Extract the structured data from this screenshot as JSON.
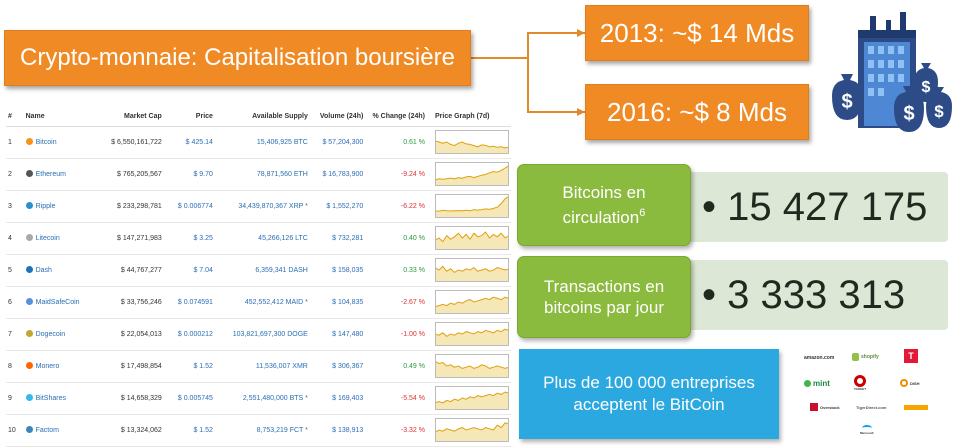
{
  "title": "Crypto-monnaie: Capitalisation boursière",
  "cap_2013": "2013: ~$ 14 Mds",
  "cap_2016": "2016: ~$ 8 Mds",
  "table": {
    "headers": [
      "#",
      "Name",
      "Market Cap",
      "Price",
      "Available Supply",
      "Volume (24h)",
      "% Change (24h)",
      "Price Graph (7d)"
    ],
    "rows": [
      {
        "rank": "1",
        "name": "Bitcoin",
        "cap": "$ 6,550,161,722",
        "price": "$ 425.14",
        "supply": "15,406,925 BTC",
        "volume": "$ 57,204,300",
        "change": "0.61 %",
        "change_sign": "pos",
        "color": "#f7931a"
      },
      {
        "rank": "2",
        "name": "Ethereum",
        "cap": "$ 765,205,567",
        "price": "$ 9.70",
        "supply": "78,871,560 ETH",
        "volume": "$ 16,783,900",
        "change": "-9.24 %",
        "change_sign": "neg",
        "color": "#555555"
      },
      {
        "rank": "3",
        "name": "Ripple",
        "cap": "$ 233,298,781",
        "price": "$ 0.006774",
        "supply": "34,439,870,367 XRP *",
        "volume": "$ 1,552,270",
        "change": "-6.22 %",
        "change_sign": "neg",
        "color": "#2a8fd1"
      },
      {
        "rank": "4",
        "name": "Litecoin",
        "cap": "$ 147,271,983",
        "price": "$ 3.25",
        "supply": "45,266,126 LTC",
        "volume": "$ 732,281",
        "change": "0.40 %",
        "change_sign": "pos",
        "color": "#a9a9a9"
      },
      {
        "rank": "5",
        "name": "Dash",
        "cap": "$ 44,767,277",
        "price": "$ 7.04",
        "supply": "6,359,341 DASH",
        "volume": "$ 158,035",
        "change": "0.33 %",
        "change_sign": "pos",
        "color": "#1c75bc"
      },
      {
        "rank": "6",
        "name": "MaidSafeCoin",
        "cap": "$ 33,756,246",
        "price": "$ 0.074591",
        "supply": "452,552,412 MAID *",
        "volume": "$ 104,835",
        "change": "-2.67 %",
        "change_sign": "neg",
        "color": "#5592d7"
      },
      {
        "rank": "7",
        "name": "Dogecoin",
        "cap": "$ 22,054,013",
        "price": "$ 0.000212",
        "supply": "103,821,697,300 DOGE",
        "volume": "$ 147,480",
        "change": "-1.00 %",
        "change_sign": "neg",
        "color": "#c2a633"
      },
      {
        "rank": "8",
        "name": "Monero",
        "cap": "$ 17,498,854",
        "price": "$ 1.52",
        "supply": "11,536,007 XMR",
        "volume": "$ 306,367",
        "change": "0.49 %",
        "change_sign": "pos",
        "color": "#ff6600"
      },
      {
        "rank": "9",
        "name": "BitShares",
        "cap": "$ 14,658,329",
        "price": "$ 0.005745",
        "supply": "2,551,480,000 BTS *",
        "volume": "$ 169,403",
        "change": "-5.54 %",
        "change_sign": "neg",
        "color": "#35baeb"
      },
      {
        "rank": "10",
        "name": "Factom",
        "cap": "$ 13,324,062",
        "price": "$ 1.52",
        "supply": "8,753,219 FCT *",
        "volume": "$ 138,913",
        "change": "-3.32 %",
        "change_sign": "neg",
        "color": "#3b87b5"
      }
    ],
    "sparklines": [
      [
        0.55,
        0.5,
        0.45,
        0.5,
        0.4,
        0.35,
        0.45,
        0.5,
        0.42,
        0.4,
        0.35,
        0.3,
        0.38,
        0.36,
        0.3,
        0.32,
        0.28,
        0.3,
        0.25,
        0.3
      ],
      [
        0.25,
        0.3,
        0.28,
        0.3,
        0.33,
        0.3,
        0.35,
        0.32,
        0.38,
        0.4,
        0.35,
        0.4,
        0.45,
        0.48,
        0.55,
        0.6,
        0.58,
        0.65,
        0.75,
        0.85
      ],
      [
        0.3,
        0.28,
        0.32,
        0.3,
        0.29,
        0.3,
        0.31,
        0.3,
        0.32,
        0.3,
        0.35,
        0.33,
        0.35,
        0.38,
        0.36,
        0.4,
        0.45,
        0.6,
        0.8,
        0.9
      ],
      [
        0.4,
        0.5,
        0.35,
        0.6,
        0.45,
        0.55,
        0.7,
        0.5,
        0.65,
        0.45,
        0.7,
        0.55,
        0.6,
        0.75,
        0.5,
        0.65,
        0.55,
        0.7,
        0.5,
        0.6
      ],
      [
        0.6,
        0.5,
        0.65,
        0.45,
        0.55,
        0.4,
        0.5,
        0.45,
        0.55,
        0.5,
        0.6,
        0.45,
        0.5,
        0.55,
        0.45,
        0.5,
        0.6,
        0.55,
        0.5,
        0.55
      ],
      [
        0.3,
        0.35,
        0.4,
        0.35,
        0.45,
        0.4,
        0.5,
        0.45,
        0.55,
        0.6,
        0.5,
        0.55,
        0.6,
        0.65,
        0.6,
        0.7,
        0.65,
        0.6,
        0.7,
        0.65
      ],
      [
        0.5,
        0.45,
        0.55,
        0.4,
        0.5,
        0.45,
        0.55,
        0.5,
        0.6,
        0.55,
        0.5,
        0.6,
        0.55,
        0.65,
        0.6,
        0.55,
        0.65,
        0.6,
        0.7,
        0.65
      ],
      [
        0.7,
        0.6,
        0.65,
        0.5,
        0.55,
        0.45,
        0.5,
        0.4,
        0.45,
        0.5,
        0.4,
        0.45,
        0.55,
        0.5,
        0.4,
        0.45,
        0.5,
        0.45,
        0.4,
        0.45
      ],
      [
        0.3,
        0.35,
        0.3,
        0.4,
        0.35,
        0.45,
        0.4,
        0.5,
        0.45,
        0.55,
        0.5,
        0.6,
        0.55,
        0.6,
        0.65,
        0.6,
        0.7,
        0.65,
        0.75,
        0.7
      ],
      [
        0.4,
        0.5,
        0.45,
        0.55,
        0.5,
        0.45,
        0.55,
        0.6,
        0.5,
        0.55,
        0.6,
        0.55,
        0.5,
        0.6,
        0.55,
        0.5,
        0.7,
        0.6,
        0.8,
        0.75
      ]
    ]
  },
  "stats": {
    "circulation_label_1": "Bitcoins en",
    "circulation_label_2": "circulation",
    "circulation_sup": "6",
    "circulation_value": "• 15 427 175",
    "transactions_label_1": "Transactions en",
    "transactions_label_2": "bitcoins par jour",
    "transactions_value": "•  3 333 313"
  },
  "companies": {
    "line1": "Plus de 100 000 entreprises",
    "line2": "acceptent le BitCoin"
  },
  "logos": {
    "amazon": "amazon.com",
    "shopify": "shopify",
    "mint": "mint",
    "target": "TARGET",
    "dish": "DISH",
    "overstock": "Overstock",
    "tigerdirect": "TigerDirect.com",
    "microsoft": "Microsoft"
  },
  "colors": {
    "orange": "#f08a24",
    "green": "#8bbb3e",
    "blue": "#2aa8df",
    "spark_fill": "#f6e7b6",
    "spark_line": "#e0a010"
  }
}
